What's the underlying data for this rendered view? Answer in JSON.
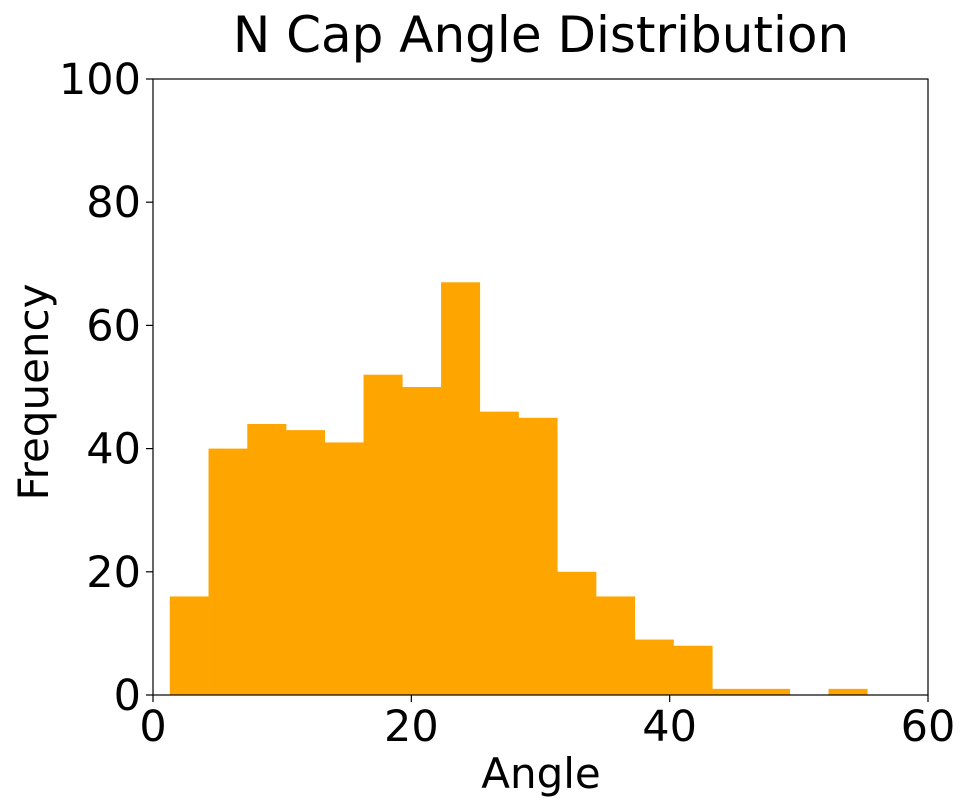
{
  "chart_data": {
    "type": "bar",
    "title": "N Cap Angle Distribution",
    "xlabel": "Angle",
    "ylabel": "Frequency",
    "xlim": [
      0,
      60
    ],
    "ylim": [
      0,
      100
    ],
    "xticks": [
      "0",
      "20",
      "40",
      "60"
    ],
    "yticks": [
      "0",
      "20",
      "40",
      "60",
      "80",
      "100"
    ],
    "grid": false,
    "bar_color": "#ffa500",
    "bins": [
      {
        "start": 1.3,
        "end": 4.3,
        "value": 16
      },
      {
        "start": 4.3,
        "end": 7.3,
        "value": 40
      },
      {
        "start": 7.3,
        "end": 10.3,
        "value": 44
      },
      {
        "start": 10.3,
        "end": 13.3,
        "value": 43
      },
      {
        "start": 13.3,
        "end": 16.3,
        "value": 41
      },
      {
        "start": 16.3,
        "end": 19.3,
        "value": 52
      },
      {
        "start": 19.3,
        "end": 22.3,
        "value": 50
      },
      {
        "start": 22.3,
        "end": 25.3,
        "value": 67
      },
      {
        "start": 25.3,
        "end": 28.3,
        "value": 46
      },
      {
        "start": 28.3,
        "end": 31.3,
        "value": 45
      },
      {
        "start": 31.3,
        "end": 34.3,
        "value": 20
      },
      {
        "start": 34.3,
        "end": 37.3,
        "value": 16
      },
      {
        "start": 37.3,
        "end": 40.3,
        "value": 9
      },
      {
        "start": 40.3,
        "end": 43.3,
        "value": 8
      },
      {
        "start": 43.3,
        "end": 46.3,
        "value": 1
      },
      {
        "start": 46.3,
        "end": 49.3,
        "value": 1
      },
      {
        "start": 49.3,
        "end": 52.3,
        "value": 0
      },
      {
        "start": 52.3,
        "end": 55.3,
        "value": 1
      }
    ]
  }
}
